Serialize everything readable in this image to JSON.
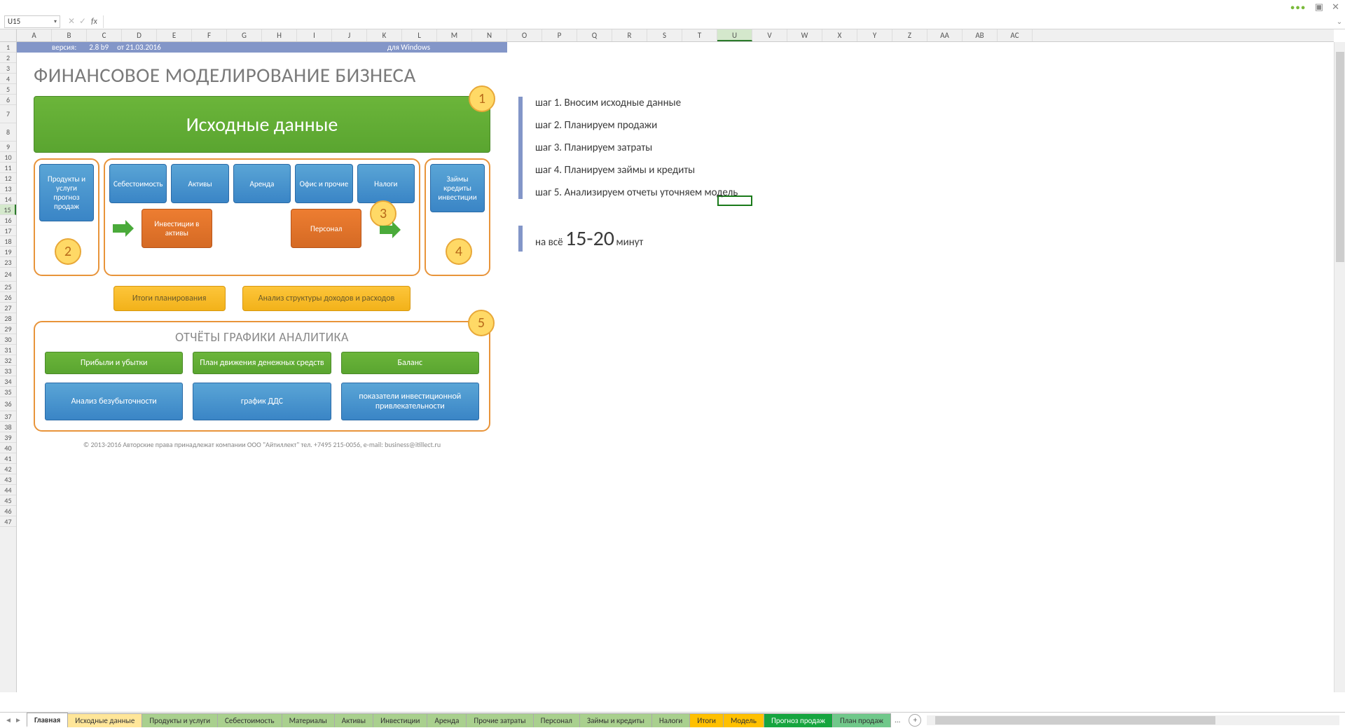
{
  "window": {
    "dots": "•••",
    "box": "▣",
    "close": "✕"
  },
  "cellRef": "U15",
  "columns": [
    "A",
    "B",
    "C",
    "D",
    "E",
    "F",
    "G",
    "H",
    "I",
    "J",
    "K",
    "L",
    "M",
    "N",
    "O",
    "P",
    "Q",
    "R",
    "S",
    "T",
    "U",
    "V",
    "W",
    "X",
    "Y",
    "Z",
    "AA",
    "AB",
    "AC"
  ],
  "selectedCol": "U",
  "rows": [
    "1",
    "2",
    "3",
    "4",
    "5",
    "6",
    "7",
    "8",
    "9",
    "10",
    "11",
    "12",
    "13",
    "14",
    "15",
    "16",
    "17",
    "18",
    "19",
    "23",
    "24",
    "25",
    "26",
    "27",
    "28",
    "29",
    "30",
    "31",
    "32",
    "33",
    "34",
    "35",
    "36",
    "37",
    "38",
    "39",
    "40",
    "41",
    "42",
    "43",
    "44",
    "45",
    "46",
    "47"
  ],
  "selectedRow": "15",
  "tallRows": [
    "7",
    "8"
  ],
  "tall2Rows": [
    "24",
    "36"
  ],
  "info": {
    "v": "версия:",
    "ver": "2.8 b9",
    "date": "от 21.03.2016",
    "os": "для Windows"
  },
  "title": "ФИНАНСОВОЕ МОДЕЛИРОВАНИЕ БИЗНЕСА",
  "section1": "Исходные данные",
  "badges": {
    "b1": "1",
    "b2": "2",
    "b3": "3",
    "b4": "4",
    "b5": "5"
  },
  "blue": {
    "products": "Продукты и услуги прогноз продаж",
    "cost": "Себестоимость",
    "assets": "Активы",
    "rent": "Аренда",
    "office": "Офис и прочие",
    "tax": "Налоги",
    "loans": "Займы кредиты инвестиции"
  },
  "orange": {
    "invest": "Инвестиции в активы",
    "staff": "Персонал"
  },
  "yellow": {
    "plan": "Итоги планирования",
    "struct": "Анализ структуры доходов и расходов"
  },
  "reports": {
    "title": "ОТЧЁТЫ ГРАФИКИ АНАЛИТИКА",
    "pl": "Прибыли и убытки",
    "cf": "План движения денежных средств",
    "bal": "Баланс",
    "be": "Анализ безубыточности",
    "dds": "график ДДС",
    "inv": "показатели инвестиционной привлекательности"
  },
  "copyright": "© 2013-2016 Авторские права принадлежат компании ООО \"Айтиллект\" тел. +7495 215-0056, e-mail: business@itillect.ru",
  "steps": {
    "s1": "шаг 1. Вносим исходные данные",
    "s2": "шаг 2. Планируем продажи",
    "s3": "шаг 3. Планируем затраты",
    "s4": "шаг 4. Планируем займы и кредиты",
    "s5": "шаг 5. Анализируем отчеты уточняем модель"
  },
  "duration": {
    "prefix": "на всё ",
    "big": "15-20",
    "suffix": " минут"
  },
  "tabs": [
    {
      "label": "Главная",
      "color": "#ffffff",
      "active": true
    },
    {
      "label": "Исходные данные",
      "color": "#ffe699"
    },
    {
      "label": "Продукты и услуги",
      "color": "#a9d08e"
    },
    {
      "label": "Себестоимость",
      "color": "#a9d08e"
    },
    {
      "label": "Материалы",
      "color": "#a9d08e"
    },
    {
      "label": "Активы",
      "color": "#a9d08e"
    },
    {
      "label": "Инвестиции",
      "color": "#a9d08e"
    },
    {
      "label": "Аренда",
      "color": "#a9d08e"
    },
    {
      "label": "Прочие затраты",
      "color": "#a9d08e"
    },
    {
      "label": "Персонал",
      "color": "#a9d08e"
    },
    {
      "label": "Займы и кредиты",
      "color": "#a9d08e"
    },
    {
      "label": "Налоги",
      "color": "#a9d08e"
    },
    {
      "label": "Итоги",
      "color": "#ffc000"
    },
    {
      "label": "Модель",
      "color": "#ffc000"
    },
    {
      "label": "Прогноз продаж",
      "color": "#16a53f",
      "fg": "#fff"
    },
    {
      "label": "План продаж",
      "color": "#70c88a"
    }
  ],
  "tabMore": "..."
}
